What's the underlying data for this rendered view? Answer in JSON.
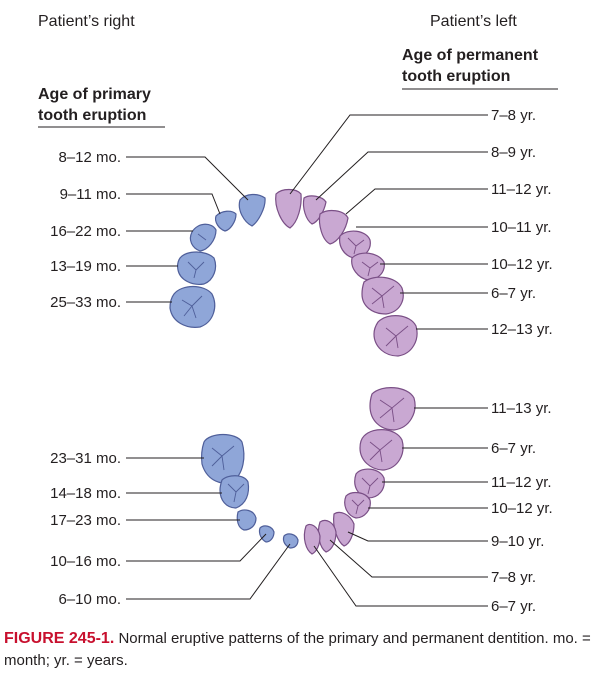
{
  "headers": {
    "patient_right": "Patient’s right",
    "patient_left": "Patient’s left",
    "primary_line1": "Age of primary",
    "primary_line2": "tooth eruption",
    "permanent_line1": "Age of permanent",
    "permanent_line2": "tooth eruption"
  },
  "colors": {
    "primary_fill": "#8fa6d8",
    "primary_stroke": "#4f5f9a",
    "permanent_fill": "#c9a8d2",
    "permanent_stroke": "#7a4f86",
    "figure_label": "#c8102e"
  },
  "primary_upper": [
    "8–12 mo.",
    "9–11 mo.",
    "16–22 mo.",
    "13–19 mo.",
    "25–33 mo."
  ],
  "primary_lower": [
    "23–31 mo.",
    "14–18 mo.",
    "17–23 mo.",
    "10–16 mo.",
    "6–10 mo."
  ],
  "permanent_upper": [
    "7–8 yr.",
    "8–9 yr.",
    "11–12 yr.",
    "10–11 yr.",
    "10–12 yr.",
    "6–7 yr.",
    "12–13 yr."
  ],
  "permanent_lower": [
    "11–13 yr.",
    "6–7 yr.",
    "11–12 yr.",
    "10–12 yr.",
    "9–10 yr.",
    "7–8 yr.",
    "6–7 yr."
  ],
  "caption": {
    "figure_label": "FIGURE 245-1.",
    "text": "Normal eruptive patterns of the primary and permanent dentition. mo. = month; yr. = years."
  }
}
